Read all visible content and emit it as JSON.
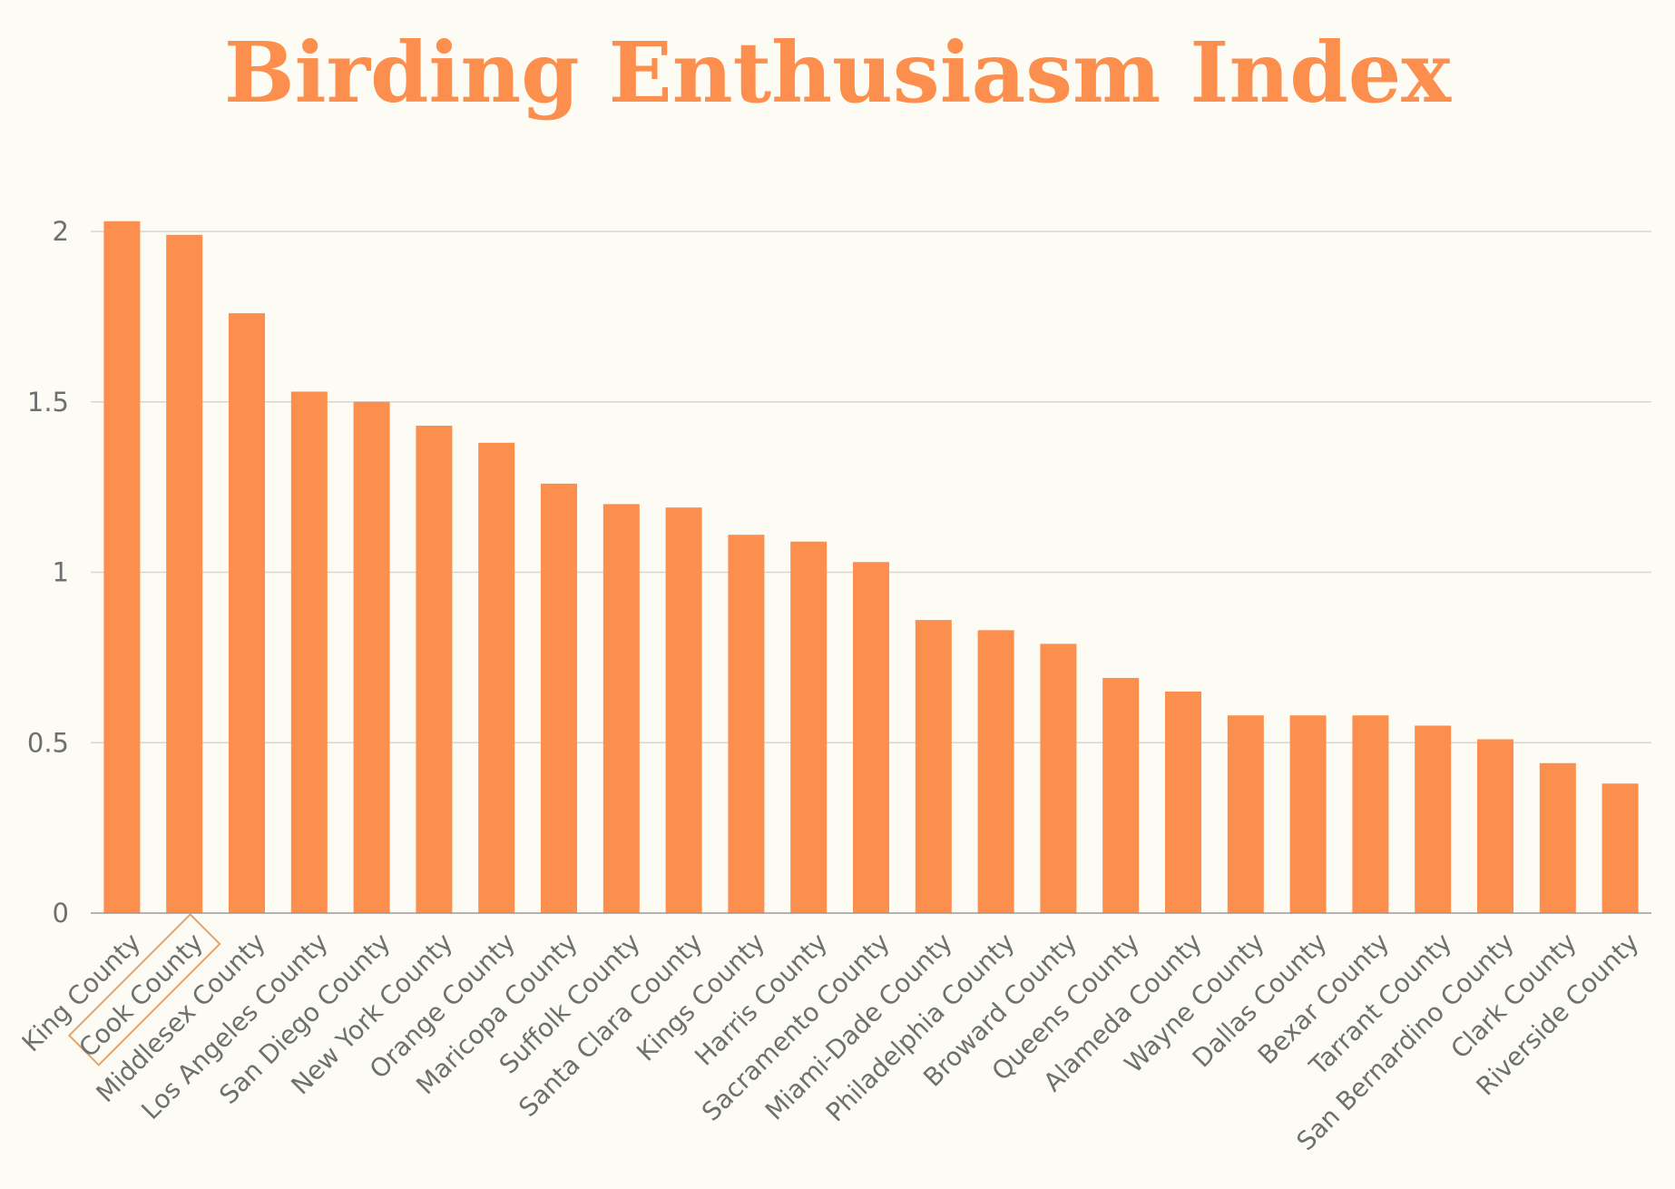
{
  "chart_data": {
    "type": "bar",
    "title": "Birding Enthusiasm Index",
    "xlabel": "",
    "ylabel": "",
    "ylim": [
      0,
      2
    ],
    "yticks": [
      "0",
      "0.5",
      "1",
      "1.5",
      "2"
    ],
    "grid": true,
    "categories": [
      "King County",
      "Cook County",
      "Middlesex County",
      "Los Angeles County",
      "San Diego County",
      "New York County",
      "Orange County",
      "Maricopa County",
      "Suffolk County",
      "Santa Clara County",
      "Kings County",
      "Harris County",
      "Sacramento County",
      "Miami-Dade County",
      "Philadelphia County",
      "Broward County",
      "Queens County",
      "Alameda County",
      "Wayne County",
      "Dallas County",
      "Bexar County",
      "Tarrant County",
      "San Bernardino County",
      "Clark County",
      "Riverside County"
    ],
    "values": [
      2.03,
      1.99,
      1.76,
      1.53,
      1.5,
      1.43,
      1.38,
      1.26,
      1.2,
      1.19,
      1.11,
      1.09,
      1.03,
      0.86,
      0.83,
      0.79,
      0.69,
      0.65,
      0.58,
      0.58,
      0.58,
      0.55,
      0.51,
      0.44,
      0.38
    ],
    "highlighted_category": "Cook County",
    "colors": {
      "bar": "#fc8f4e",
      "title": "#fc8f4e",
      "highlight_box": "#e8a26a",
      "grid": "#d6d6d2",
      "axis": "#9a9a9a",
      "text": "#6f6f6f",
      "background": "#fdfcf4"
    }
  }
}
